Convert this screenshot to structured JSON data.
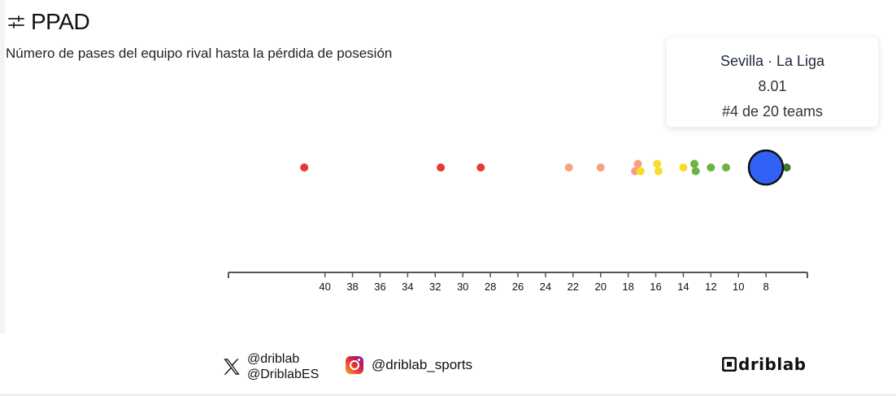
{
  "header": {
    "title": "PPAD",
    "subtitle": "Número de pases del equipo rival hasta la pérdida de posesión",
    "icon": "filter-sliders-icon"
  },
  "tooltip": {
    "team": "Sevilla · La Liga",
    "value": "8.01",
    "rank": "#4 de 20 teams"
  },
  "chart_data": {
    "type": "scatter",
    "title": "PPAD",
    "xlabel": "",
    "ylabel": "",
    "x_reversed": true,
    "xlim": [
      47,
      5
    ],
    "x_ticks": [
      40,
      38,
      36,
      34,
      32,
      30,
      28,
      26,
      24,
      22,
      20,
      18,
      16,
      14,
      12,
      10,
      8
    ],
    "highlight": {
      "team": "Sevilla",
      "x": 8.01,
      "color": "#2f62f5"
    },
    "points": [
      {
        "x": 41.5,
        "color": "#e8392f"
      },
      {
        "x": 31.6,
        "color": "#e8392f"
      },
      {
        "x": 28.7,
        "color": "#e8392f"
      },
      {
        "x": 22.3,
        "color": "#f4a185"
      },
      {
        "x": 20.0,
        "color": "#f4a185"
      },
      {
        "x": 17.3,
        "color": "#f4a185",
        "offset": -1
      },
      {
        "x": 17.5,
        "color": "#f4a185",
        "offset": 1
      },
      {
        "x": 17.1,
        "color": "#f7dd2a",
        "offset": 1
      },
      {
        "x": 15.9,
        "color": "#f7dd2a",
        "offset": -1
      },
      {
        "x": 15.8,
        "color": "#f7dd2a",
        "offset": 1
      },
      {
        "x": 14.0,
        "color": "#f7dd2a"
      },
      {
        "x": 13.2,
        "color": "#6cb33f",
        "offset": -1
      },
      {
        "x": 13.1,
        "color": "#6cb33f",
        "offset": 1
      },
      {
        "x": 12.0,
        "color": "#6cb33f"
      },
      {
        "x": 10.9,
        "color": "#6cb33f"
      },
      {
        "x": 6.5,
        "color": "#3b7a2a"
      }
    ]
  },
  "footer": {
    "x_handle_1": "@driblab",
    "x_handle_2": "@DriblabES",
    "instagram_handle": "@driblab_sports",
    "brand": "driblab"
  }
}
